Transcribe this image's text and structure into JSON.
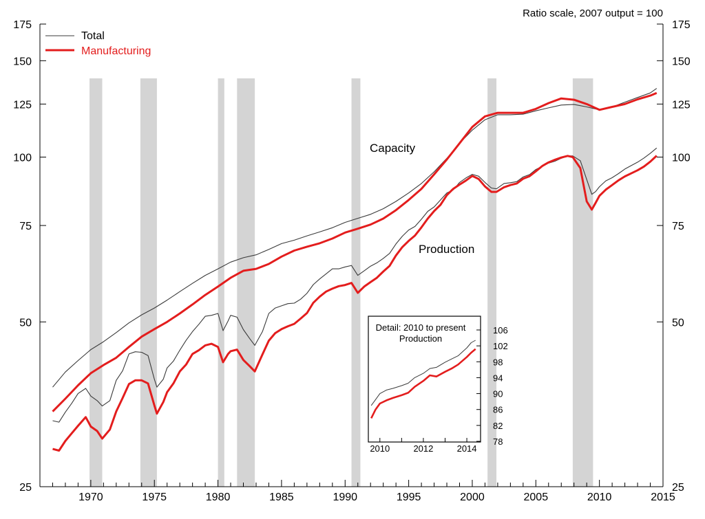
{
  "chart_data": {
    "type": "line",
    "note": "Ratio scale, 2007 output = 100",
    "xlim": [
      1966,
      2015
    ],
    "ylim": [
      25,
      175
    ],
    "y_scale": "log",
    "x_ticks": [
      1970,
      1975,
      1980,
      1985,
      1990,
      1995,
      2000,
      2005,
      2010,
      2015
    ],
    "y_ticks": [
      25,
      50,
      75,
      100,
      125,
      150,
      175
    ],
    "legend": [
      {
        "name": "Total",
        "color": "#3a3a3a"
      },
      {
        "name": "Manufacturing",
        "color": "#e31d1d"
      }
    ],
    "annotations": {
      "capacity": "Capacity",
      "production": "Production"
    },
    "recessions": [
      [
        1969.9,
        1970.9
      ],
      [
        1973.9,
        1975.2
      ],
      [
        1980.0,
        1980.5
      ],
      [
        1981.5,
        1982.9
      ],
      [
        1990.5,
        1991.2
      ],
      [
        2001.2,
        2001.9
      ],
      [
        2007.9,
        2009.5
      ]
    ],
    "series": [
      {
        "name": "Total capacity",
        "color": "#3a3a3a",
        "x": [
          1967,
          1968,
          1969,
          1970,
          1971,
          1972,
          1973,
          1974,
          1975,
          1976,
          1977,
          1978,
          1979,
          1980,
          1981,
          1982,
          1983,
          1984,
          1985,
          1986,
          1987,
          1988,
          1989,
          1990,
          1991,
          1992,
          1993,
          1994,
          1995,
          1996,
          1997,
          1998,
          1999,
          2000,
          2001,
          2002,
          2003,
          2004,
          2005,
          2006,
          2007,
          2008,
          2009,
          2010,
          2011,
          2012,
          2013,
          2014,
          2014.5
        ],
        "y": [
          38,
          40.5,
          42.5,
          44.5,
          46,
          47.8,
          49.8,
          51.5,
          53,
          54.8,
          56.8,
          58.8,
          60.8,
          62.5,
          64.3,
          65.5,
          66.3,
          67.8,
          69.5,
          70.5,
          71.8,
          73,
          74.3,
          76,
          77.3,
          78.6,
          80.5,
          83,
          86,
          89.5,
          94,
          99.5,
          106,
          112,
          117,
          119.5,
          119.5,
          119.8,
          121.5,
          123,
          124.5,
          124.8,
          123.5,
          122,
          123.5,
          126,
          128.5,
          131,
          133.5
        ]
      },
      {
        "name": "Manufacturing capacity",
        "color": "#e31d1d",
        "x": [
          1967,
          1968,
          1969,
          1970,
          1971,
          1972,
          1973,
          1974,
          1975,
          1976,
          1977,
          1978,
          1979,
          1980,
          1981,
          1982,
          1983,
          1984,
          1985,
          1986,
          1987,
          1988,
          1989,
          1990,
          1991,
          1992,
          1993,
          1994,
          1995,
          1996,
          1997,
          1998,
          1999,
          2000,
          2001,
          2002,
          2003,
          2004,
          2005,
          2006,
          2007,
          2008,
          2009,
          2010,
          2011,
          2012,
          2013,
          2014,
          2014.5
        ],
        "y": [
          34.3,
          36.2,
          38.3,
          40.3,
          41.7,
          43,
          45,
          47,
          48.5,
          50,
          51.8,
          53.8,
          56,
          58,
          60.2,
          62,
          62.5,
          63.8,
          65.8,
          67.5,
          68.6,
          69.6,
          71,
          72.8,
          74,
          75.3,
          77.2,
          80,
          83.5,
          87.5,
          93,
          99,
          106,
          113.5,
          118.7,
          120.5,
          120.5,
          120.5,
          122.5,
          125.5,
          128,
          127.3,
          125,
          122,
          123.5,
          125,
          127.5,
          129.5,
          131
        ]
      },
      {
        "name": "Total production",
        "color": "#3a3a3a",
        "x": [
          1967,
          1967.5,
          1968,
          1968.5,
          1969,
          1969.6,
          1970,
          1970.5,
          1970.9,
          1971.5,
          1972,
          1972.5,
          1973,
          1973.5,
          1974,
          1974.5,
          1975,
          1975.2,
          1975.7,
          1976,
          1976.5,
          1977,
          1977.5,
          1978,
          1978.5,
          1979,
          1979.5,
          1980,
          1980.4,
          1980.8,
          1981,
          1981.5,
          1982,
          1982.5,
          1982.9,
          1983.5,
          1984,
          1984.5,
          1985,
          1985.5,
          1986,
          1986.5,
          1987,
          1987.5,
          1988,
          1988.5,
          1989,
          1989.5,
          1990,
          1990.5,
          1991,
          1991.5,
          1992,
          1992.5,
          1993,
          1993.5,
          1994,
          1994.5,
          1995,
          1995.5,
          1996,
          1996.5,
          1997,
          1997.5,
          1998,
          1998.5,
          1999,
          1999.5,
          2000,
          2000.5,
          2001,
          2001.5,
          2001.9,
          2002.5,
          2003,
          2003.5,
          2004,
          2004.5,
          2005,
          2005.5,
          2006,
          2006.5,
          2007,
          2007.5,
          2007.9,
          2008.5,
          2009,
          2009.4,
          2009.7,
          2010,
          2010.5,
          2011,
          2011.5,
          2012,
          2012.5,
          2013,
          2013.5,
          2014,
          2014.5
        ],
        "y": [
          33,
          32.8,
          34.2,
          35.5,
          37,
          37.8,
          36.6,
          35.9,
          35.1,
          35.9,
          39.1,
          40.7,
          43.7,
          44.1,
          44,
          43.4,
          39.3,
          38,
          39.3,
          41.2,
          42.4,
          44.4,
          46.3,
          48,
          49.5,
          51.2,
          51.4,
          51.8,
          48.2,
          50.2,
          51.4,
          51,
          48.4,
          46.6,
          45.3,
          48,
          51.8,
          53,
          53.5,
          54,
          54.1,
          55,
          56.4,
          58.5,
          59.9,
          61.2,
          62.5,
          62.5,
          63,
          63.4,
          60.8,
          62,
          63.2,
          64.1,
          65.3,
          66.7,
          69.4,
          71.7,
          73.6,
          74.7,
          77,
          79.6,
          81.1,
          83.5,
          86,
          87.1,
          89.9,
          91.6,
          93,
          92.3,
          89.9,
          87.8,
          87.5,
          89.5,
          89.8,
          90.2,
          92,
          92.9,
          94.9,
          96.2,
          97.5,
          98.3,
          99.5,
          100.5,
          100.5,
          98.5,
          91,
          85.5,
          86.5,
          88.3,
          90.5,
          91.7,
          93.3,
          95.1,
          96.5,
          97.9,
          99.6,
          101.6,
          103.9
        ]
      },
      {
        "name": "Manufacturing production",
        "color": "#e31d1d",
        "x": [
          1967,
          1967.5,
          1968,
          1968.5,
          1969,
          1969.6,
          1970,
          1970.5,
          1970.9,
          1971.5,
          1972,
          1972.5,
          1973,
          1973.5,
          1974,
          1974.5,
          1975,
          1975.2,
          1975.7,
          1976,
          1976.5,
          1977,
          1977.5,
          1978,
          1978.5,
          1979,
          1979.5,
          1980,
          1980.4,
          1980.8,
          1981,
          1981.5,
          1982,
          1982.5,
          1982.9,
          1983.5,
          1984,
          1984.5,
          1985,
          1985.5,
          1986,
          1986.5,
          1987,
          1987.5,
          1988,
          1988.5,
          1989,
          1989.5,
          1990,
          1990.5,
          1991,
          1991.5,
          1992,
          1992.5,
          1993,
          1993.5,
          1994,
          1994.5,
          1995,
          1995.5,
          1996,
          1996.5,
          1997,
          1997.5,
          1998,
          1998.5,
          1999,
          1999.5,
          2000,
          2000.5,
          2001,
          2001.5,
          2001.9,
          2002.5,
          2003,
          2003.5,
          2004,
          2004.5,
          2005,
          2005.5,
          2006,
          2006.5,
          2007,
          2007.5,
          2007.9,
          2008.5,
          2009,
          2009.4,
          2009.7,
          2010,
          2010.5,
          2011,
          2011.5,
          2012,
          2012.5,
          2013,
          2013.5,
          2014,
          2014.5
        ],
        "y": [
          29.3,
          29.1,
          30.3,
          31.3,
          32.3,
          33.5,
          32.2,
          31.6,
          30.6,
          31.8,
          34.3,
          36.3,
          38.5,
          39.1,
          39.1,
          38.6,
          35.2,
          34,
          35.7,
          37.2,
          38.6,
          40.6,
          41.8,
          43.7,
          44.4,
          45.3,
          45.6,
          45,
          42.2,
          43.7,
          44.2,
          44.5,
          42.6,
          41.5,
          40.6,
          43.6,
          46.2,
          47.7,
          48.5,
          49.1,
          49.6,
          50.7,
          51.9,
          54.2,
          55.6,
          56.8,
          57.5,
          58.1,
          58.4,
          58.9,
          56.5,
          58,
          59.1,
          60.2,
          61.8,
          63.3,
          66.1,
          68.5,
          70.3,
          71.9,
          74.4,
          77.2,
          79.7,
          81.8,
          85.2,
          87.5,
          89.1,
          90.6,
          92.4,
          91.2,
          88.4,
          86.4,
          86.4,
          88.1,
          88.9,
          89.5,
          91.3,
          92.3,
          94.2,
          96.3,
          97.8,
          98.9,
          99.8,
          100.5,
          100,
          95.5,
          83,
          80.2,
          82.5,
          85,
          87.2,
          88.9,
          90.7,
          92.2,
          93.4,
          94.6,
          96.1,
          98.1,
          100.6
        ]
      }
    ],
    "inset": {
      "title": "Detail: 2010 to present",
      "subtitle": "Production",
      "xlim": [
        2009.5,
        2014.6
      ],
      "ylim": [
        78,
        106
      ],
      "x_ticks": [
        2010,
        2012,
        2014
      ],
      "y_ticks": [
        78,
        82,
        86,
        90,
        94,
        98,
        102,
        106
      ],
      "series": [
        {
          "name": "Total",
          "color": "#3a3a3a",
          "x": [
            2009.6,
            2009.8,
            2010,
            2010.3,
            2010.6,
            2011,
            2011.3,
            2011.6,
            2012,
            2012.3,
            2012.6,
            2013,
            2013.3,
            2013.6,
            2014,
            2014.2,
            2014.4
          ],
          "y": [
            87,
            88.5,
            90,
            90.9,
            91.3,
            92,
            92.6,
            94,
            95.1,
            96.3,
            96.6,
            97.9,
            98.7,
            99.5,
            101.5,
            102.8,
            103.4
          ]
        },
        {
          "name": "Manufacturing",
          "color": "#e31d1d",
          "x": [
            2009.6,
            2009.8,
            2010,
            2010.3,
            2010.6,
            2011,
            2011.3,
            2011.6,
            2012,
            2012.3,
            2012.6,
            2013,
            2013.3,
            2013.6,
            2014,
            2014.2,
            2014.4
          ],
          "y": [
            83.8,
            86,
            87.5,
            88.3,
            88.9,
            89.6,
            90.2,
            91.7,
            93.2,
            94.6,
            94.3,
            95.5,
            96.3,
            97.3,
            99.2,
            100.3,
            101.2
          ]
        }
      ]
    }
  }
}
